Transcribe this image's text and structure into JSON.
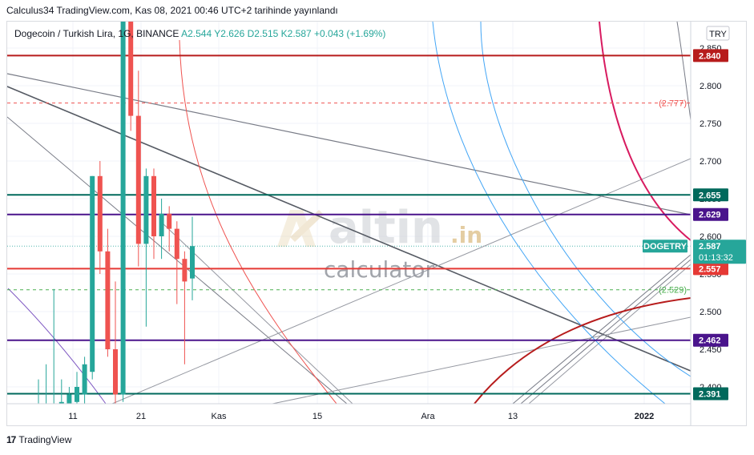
{
  "publication": "Calculus34 TradingView.com, Kas 08, 2021 00:46 UTC+2 tarihinde yayınlandı",
  "footer": {
    "logo": "17",
    "brand": "TradingView"
  },
  "watermark": {
    "brand": "altin",
    "domain": ".in",
    "sub": "calculator"
  },
  "colors": {
    "up": "#26a69a",
    "down": "#ef5350",
    "grid": "#f0f3fa",
    "dark_red": "#b71c1c",
    "teal_dark": "#00695c",
    "purple": "#4a148c",
    "red_level": "#e53935",
    "green_dash": "#4caf50",
    "fib_red": "#d81b60",
    "fib_blue": "#42a5f5",
    "gray": "#787b86"
  },
  "chart_data": {
    "type": "candlestick",
    "title": "Dogecoin / Turkish Lira, 1G, BINANCE",
    "ohlc": {
      "o_label": "A2.544",
      "h_label": "Y2.626",
      "l_label": "D2.515",
      "c_label": "K2.587",
      "change": "+0.043 (+1.69%)"
    },
    "currency": "TRY",
    "y_ticks": [
      "2.850",
      "2.800",
      "2.750",
      "2.700",
      "2.650",
      "2.600",
      "2.550",
      "2.500",
      "2.450",
      "2.400"
    ],
    "ylim": [
      2.38,
      2.87
    ],
    "x_ticks": [
      "11",
      "21",
      "Kas",
      "15",
      "Ara",
      "13",
      "2022"
    ],
    "price_tag": {
      "symbol": "DOGETRY",
      "price": "2.587",
      "countdown": "01:13:32"
    },
    "levels": [
      {
        "value": 2.84,
        "label": "2.840",
        "color": "#b71c1c",
        "style": "solid"
      },
      {
        "value": 2.777,
        "label": "(2.777)",
        "color": "#ef5350",
        "style": "dashed"
      },
      {
        "value": 2.655,
        "label": "2.655",
        "color": "#00695c",
        "style": "solid"
      },
      {
        "value": 2.629,
        "label": "2.629",
        "color": "#4a148c",
        "style": "solid"
      },
      {
        "value": 2.557,
        "label": "2.557",
        "color": "#e53935",
        "style": "solid"
      },
      {
        "value": 2.529,
        "label": "(2.529)",
        "color": "#4caf50",
        "style": "dashed"
      },
      {
        "value": 2.462,
        "label": "2.462",
        "color": "#4a148c",
        "style": "solid"
      },
      {
        "value": 2.391,
        "label": "2.391",
        "color": "#00695c",
        "style": "solid"
      }
    ],
    "candles": [
      {
        "o": 2.3,
        "h": 2.41,
        "l": 2.28,
        "c": 2.37
      },
      {
        "o": 2.31,
        "h": 2.43,
        "l": 2.28,
        "c": 2.36
      },
      {
        "o": 2.3,
        "h": 2.53,
        "l": 2.29,
        "c": 2.35
      },
      {
        "o": 2.36,
        "h": 2.41,
        "l": 2.33,
        "c": 2.38
      },
      {
        "o": 2.37,
        "h": 2.4,
        "l": 2.34,
        "c": 2.39
      },
      {
        "o": 2.38,
        "h": 2.42,
        "l": 2.36,
        "c": 2.4
      },
      {
        "o": 2.39,
        "h": 2.44,
        "l": 2.37,
        "c": 2.43
      },
      {
        "o": 2.42,
        "h": 2.68,
        "l": 2.41,
        "c": 2.68
      },
      {
        "o": 2.68,
        "h": 2.7,
        "l": 2.55,
        "c": 2.58
      },
      {
        "o": 2.58,
        "h": 2.61,
        "l": 2.44,
        "c": 2.45
      },
      {
        "o": 2.45,
        "h": 2.54,
        "l": 2.37,
        "c": 2.39
      },
      {
        "o": 2.39,
        "h": 2.89,
        "l": 2.38,
        "c": 2.89
      },
      {
        "o": 2.89,
        "h": 2.9,
        "l": 2.74,
        "c": 2.76
      },
      {
        "o": 2.76,
        "h": 2.82,
        "l": 2.56,
        "c": 2.59
      },
      {
        "o": 2.59,
        "h": 2.69,
        "l": 2.48,
        "c": 2.68
      },
      {
        "o": 2.68,
        "h": 2.69,
        "l": 2.57,
        "c": 2.6
      },
      {
        "o": 2.6,
        "h": 2.65,
        "l": 2.57,
        "c": 2.63
      },
      {
        "o": 2.63,
        "h": 2.64,
        "l": 2.58,
        "c": 2.61
      },
      {
        "o": 2.61,
        "h": 2.62,
        "l": 2.51,
        "c": 2.57
      },
      {
        "o": 2.57,
        "h": 2.58,
        "l": 2.43,
        "c": 2.54
      },
      {
        "o": 2.544,
        "h": 2.626,
        "l": 2.515,
        "c": 2.587
      }
    ]
  }
}
